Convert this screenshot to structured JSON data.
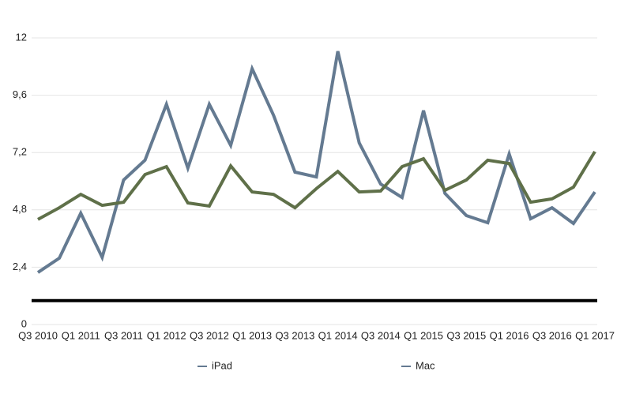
{
  "chart_data": {
    "type": "line",
    "categories": [
      "Q3 2010",
      null,
      "Q1 2011",
      null,
      "Q3 2011",
      null,
      "Q1 2012",
      null,
      "Q3 2012",
      null,
      "Q1 2013",
      null,
      "Q3 2013",
      null,
      "Q1 2014",
      null,
      "Q3 2014",
      null,
      "Q1 2015",
      null,
      "Q3 2015",
      null,
      "Q1 2016",
      null,
      "Q3 2016",
      null,
      "Q1 2017"
    ],
    "series": [
      {
        "name": "iPad",
        "color": "#647a91",
        "values": [
          2.18,
          2.78,
          4.66,
          2.81,
          6.05,
          6.88,
          9.22,
          6.55,
          9.22,
          7.5,
          10.71,
          8.76,
          6.38,
          6.18,
          11.44,
          7.6,
          5.88,
          5.32,
          8.96,
          5.49,
          4.56,
          4.26,
          7.14,
          4.43,
          4.89,
          4.23,
          5.55
        ]
      },
      {
        "name": "Mac",
        "color": "#5f7049",
        "values": [
          4.4,
          4.89,
          5.45,
          4.99,
          5.12,
          6.28,
          6.61,
          5.09,
          4.96,
          6.64,
          5.55,
          5.45,
          4.89,
          5.69,
          6.41,
          5.55,
          5.59,
          6.61,
          6.94,
          5.62,
          6.05,
          6.88,
          6.74,
          5.12,
          5.26,
          5.75,
          7.24
        ]
      }
    ],
    "reference_line": {
      "value": 1,
      "color": "#000000"
    },
    "legend_marker_color": "#647a91",
    "ylim": [
      0,
      12
    ],
    "yticks": [
      0,
      {
        "value": 2.4,
        "label": "2,4"
      },
      {
        "value": 4.8,
        "label": "4,8"
      },
      {
        "value": 7.2,
        "label": "7,2"
      },
      {
        "value": 9.6,
        "label": "9,6"
      },
      12
    ],
    "grid": true,
    "legend": "bottom"
  }
}
